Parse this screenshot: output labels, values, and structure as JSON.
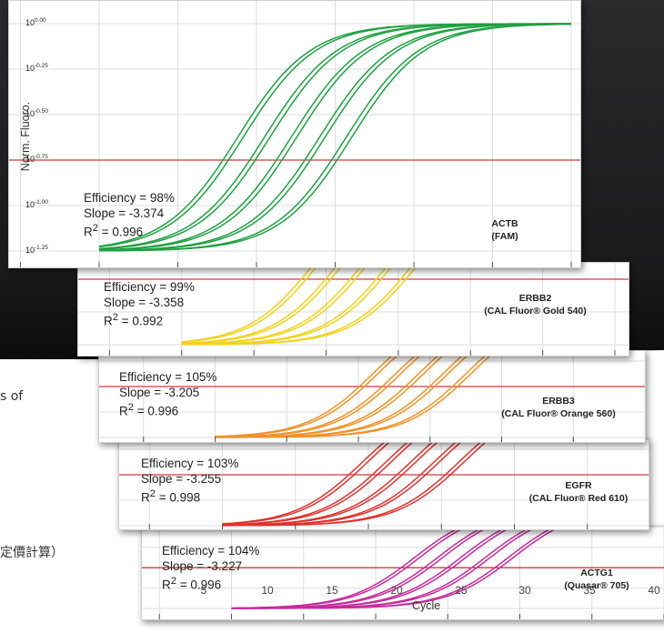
{
  "side_text": {
    "top": "s of",
    "bottom": "定價計算）"
  },
  "colors": {
    "ACTB": "#1fa042",
    "ERBB2": "#f3d21c",
    "ERBB3": "#ef9228",
    "EGFR": "#e0322f",
    "ACTG1": "#c62c9c",
    "threshold": "#cc3c3c"
  },
  "chart_data": {
    "type": "line",
    "xlabel": "Cycle",
    "ylabel": "Norm. Fluoro.",
    "xlim": [
      0,
      40
    ],
    "xticks": [
      "5",
      "10",
      "15",
      "20",
      "25",
      "30",
      "35",
      "40"
    ],
    "y_scale": "log",
    "y_tick_base": "10",
    "y_tick_exponents": [
      "0.00",
      "-0.25",
      "-0.50",
      "-0.75",
      "-1.00",
      "-1.25"
    ],
    "ylim": [
      -1.25,
      0
    ],
    "threshold": -0.75,
    "panels": [
      {
        "gene": "ACTB",
        "dye": "(FAM)",
        "efficiency": "Efficiency = 98%",
        "slope": "Slope = -3.374",
        "r2": "0.996",
        "midpoints": [
          18.8,
          20.5,
          22.2,
          24.0,
          25.7
        ]
      },
      {
        "gene": "ERBB2",
        "dye": "(CAL Fluor® Gold 540)",
        "efficiency": "Efficiency = 99%",
        "slope": "Slope = -3.358",
        "r2": "0.992",
        "midpoints": [
          19.2,
          20.9,
          22.6,
          24.4,
          26.1
        ]
      },
      {
        "gene": "ERBB3",
        "dye": "(CAL Fluor® Orange 560)",
        "efficiency": "Efficiency = 105%",
        "slope": "Slope = -3.205",
        "r2": "0.996",
        "midpoints": [
          21.0,
          22.6,
          24.2,
          25.9,
          27.5
        ]
      },
      {
        "gene": "EGFR",
        "dye": "(CAL Fluor® Red 610)",
        "efficiency": "Efficiency = 103%",
        "slope": "Slope = -3.255",
        "r2": "0.998",
        "midpoints": [
          19.6,
          21.2,
          22.9,
          24.5,
          26.2
        ]
      },
      {
        "gene": "ACTG1",
        "dye": "(Quasar® 705)",
        "efficiency": "Efficiency = 104%",
        "slope": "Slope = -3.227",
        "r2": "0.996",
        "midpoints": [
          22.7,
          24.3,
          25.9,
          27.6,
          29.2
        ]
      }
    ]
  }
}
